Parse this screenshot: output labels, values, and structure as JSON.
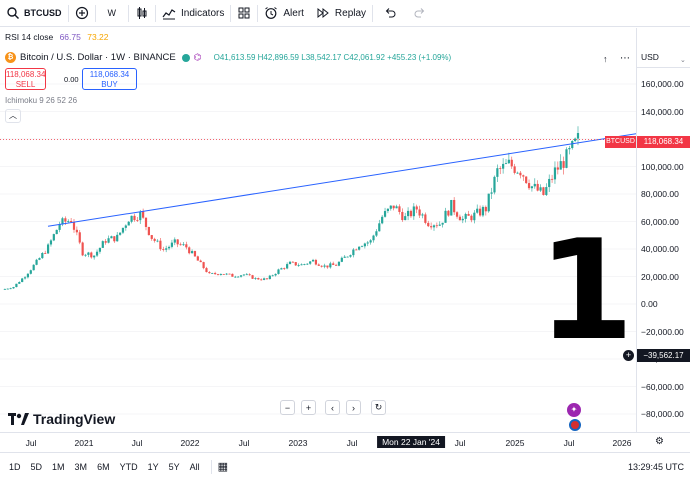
{
  "toolbar": {
    "symbol": "BTCUSD",
    "interval": "W",
    "indicators_label": "Indicators",
    "alert_label": "Alert",
    "replay_label": "Replay"
  },
  "legend": {
    "rsi_label": "RSI 14 close",
    "rsi_value_1": "66.75",
    "rsi_value_2": "73.22",
    "title": "Bitcoin / U.S. Dollar · 1W · BINANCE",
    "open": "O41,613.59",
    "high": "H42,896.59",
    "low": "L38,542.17",
    "close": "C42,061.92",
    "change": "+455.23 (+1.09%)",
    "sell_price": "118,068.34",
    "sell_label": "SELL",
    "spread": "0.00",
    "buy_price": "118,068.34",
    "buy_label": "BUY",
    "ichimoku": "Ichimoku 9 26 52 26"
  },
  "price_axis": {
    "currency": "USD",
    "ticks": [
      "160,000.00",
      "140,000.00",
      "120,000.00",
      "100,000.00",
      "80,000.00",
      "60,000.00",
      "40,000.00",
      "20,000.00",
      "0.00",
      "−20,000.00",
      "−40,000.00",
      "−60,000.00",
      "−80,000.00"
    ],
    "last_price_tag": "118,068.34",
    "symbol_tag": "BTCUSD",
    "crosshair_price": "−39,562.17"
  },
  "time_axis": {
    "labels": [
      "Jul",
      "2021",
      "Jul",
      "2022",
      "Jul",
      "2023",
      "Jul",
      "Mon 22 Jan '24",
      "Jul",
      "2025",
      "Jul",
      "2026"
    ]
  },
  "annotation": {
    "big_number": "1"
  },
  "watermark": "TradingView",
  "bottom_bar": {
    "ranges": [
      "1D",
      "5D",
      "1M",
      "3M",
      "6M",
      "YTD",
      "1Y",
      "5Y",
      "All"
    ],
    "clock": "13:29:45 UTC"
  },
  "colors": {
    "up": "#26a69a",
    "down": "#ef5350",
    "trendline": "#2962ff",
    "accent": "#2962ff"
  },
  "chart_data": {
    "type": "line",
    "series": [
      {
        "values": [
          9000,
          11000,
          19000,
          29000,
          40000,
          57000,
          60000,
          36000,
          34000,
          45000,
          47000,
          61000,
          64000,
          47000,
          38000,
          43000,
          40000,
          30000,
          20000,
          21000,
          19000,
          20000,
          17000,
          16500,
          23000,
          28000,
          27000,
          30000,
          26000,
          27000,
          34000,
          42000,
          44000,
          62000,
          70000,
          61000,
          68000,
          58000,
          57000,
          70000,
          60000,
          63000,
          68000,
          95000,
          100000,
          96000,
          84000,
          78000,
          95000,
          105000,
          118000
        ]
      }
    ],
    "trendline": {
      "start": [
        "2021-04",
        58000
      ],
      "end": [
        "2025-08",
        118000
      ]
    },
    "ylim": [
      -90000,
      170000
    ],
    "log": false
  }
}
